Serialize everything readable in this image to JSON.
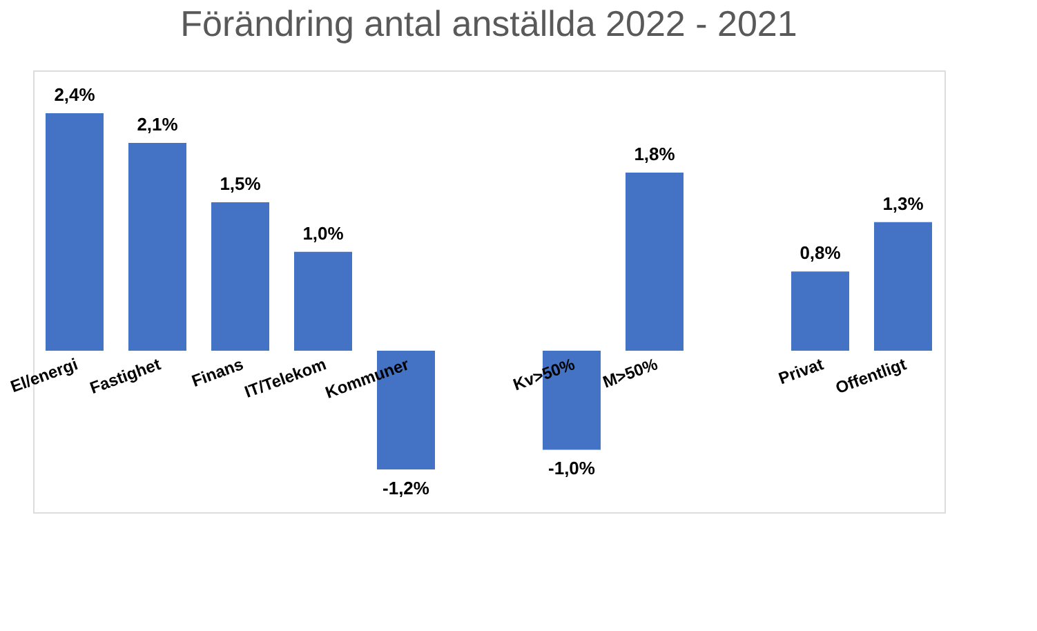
{
  "chart_data": {
    "type": "bar",
    "title": "Förändring antal anställda 2022 - 2021",
    "categories": [
      "El/energi",
      "Fastighet",
      "Finans",
      "IT/Telekom",
      "Kommuner",
      null,
      "Kv>50%",
      "M>50%",
      null,
      "Privat",
      "Offentligt"
    ],
    "values": [
      2.4,
      2.1,
      1.5,
      1.0,
      -1.2,
      null,
      -1.0,
      1.8,
      null,
      0.8,
      1.3
    ],
    "value_labels": [
      "2,4%",
      "2,1%",
      "1,5%",
      "1,0%",
      "-1,2%",
      null,
      "-1,0%",
      "1,8%",
      null,
      "0,8%",
      "1,3%"
    ],
    "color": "#4472c4",
    "grid": false
  }
}
